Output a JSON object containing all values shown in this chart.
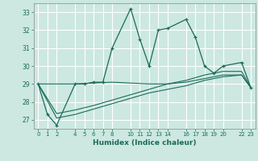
{
  "xlabel": "Humidex (Indice chaleur)",
  "bg_color": "#cce8e0",
  "grid_color": "#b0d8cc",
  "line_color": "#1a6b5a",
  "ylim": [
    26.5,
    33.5
  ],
  "xlim": [
    -0.5,
    23.5
  ],
  "yticks": [
    27,
    28,
    29,
    30,
    31,
    32,
    33
  ],
  "xticks": [
    0,
    1,
    2,
    4,
    5,
    6,
    7,
    8,
    10,
    11,
    12,
    13,
    14,
    16,
    17,
    18,
    19,
    20,
    22,
    23
  ],
  "xtick_labels": [
    "0",
    "1",
    "2",
    "4",
    "5",
    "6",
    "7",
    "8",
    "10",
    "11",
    "12",
    "13",
    "14",
    "16",
    "17",
    "18",
    "19",
    "20",
    "22",
    "23"
  ],
  "main_x": [
    0,
    1,
    2,
    4,
    5,
    6,
    7,
    8,
    10,
    11,
    12,
    13,
    14,
    16,
    17,
    18,
    19,
    20,
    22,
    23
  ],
  "main_y": [
    29.0,
    27.3,
    26.7,
    29.0,
    29.0,
    29.1,
    29.1,
    31.0,
    33.2,
    31.5,
    30.0,
    32.0,
    32.1,
    32.6,
    31.6,
    30.0,
    29.6,
    30.0,
    30.2,
    28.8
  ],
  "line1_x": [
    0,
    2,
    4,
    6,
    8,
    10,
    12,
    14,
    16,
    18,
    20,
    22,
    23
  ],
  "line1_y": [
    29.0,
    27.1,
    27.3,
    27.6,
    27.9,
    28.2,
    28.5,
    28.7,
    28.9,
    29.2,
    29.4,
    29.5,
    28.8
  ],
  "line2_x": [
    0,
    2,
    4,
    6,
    8,
    10,
    12,
    14,
    16,
    18,
    20,
    22,
    23
  ],
  "line2_y": [
    29.0,
    27.35,
    27.55,
    27.8,
    28.1,
    28.4,
    28.7,
    29.0,
    29.2,
    29.5,
    29.7,
    29.7,
    28.8
  ],
  "line3_x": [
    0,
    4,
    8,
    10,
    12,
    14,
    16,
    18,
    20,
    22,
    23
  ],
  "line3_y": [
    29.0,
    29.0,
    29.1,
    29.05,
    29.0,
    29.0,
    29.1,
    29.3,
    29.5,
    29.5,
    28.8
  ]
}
